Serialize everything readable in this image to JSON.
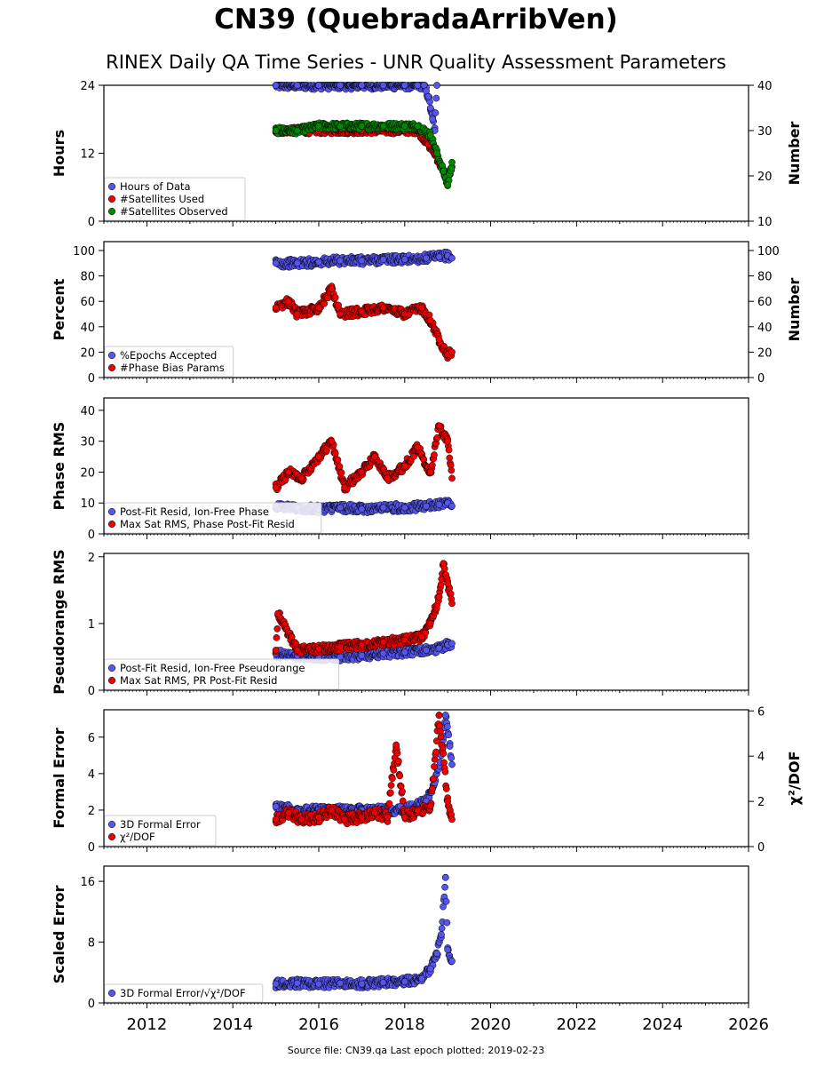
{
  "header": {
    "title": "CN39 (QuebradaArribVen)",
    "subtitle": "RINEX Daily QA Time Series - UNR Quality Assessment Parameters"
  },
  "footer": {
    "text": "Source file: CN39.qa Last epoch plotted: 2019-02-23"
  },
  "colors": {
    "blue": "#5555ee",
    "red": "#ee0000",
    "green": "#008800",
    "edge": "#000000"
  },
  "chart_data": [
    {
      "type": "scatter",
      "ylabel": "Hours",
      "ylim": [
        0,
        24
      ],
      "yticks": [
        0,
        12,
        24
      ],
      "ylabel_right": "Number",
      "ylim_right": [
        10,
        40
      ],
      "yticks_right": [
        10,
        20,
        30,
        40
      ],
      "xlim": [
        2011,
        2026
      ],
      "legend_position": "lower left",
      "series": [
        {
          "name": "Hours of Data",
          "color": "blue",
          "axis": "left",
          "x": [
            2015.0,
            2015.5,
            2016.0,
            2016.5,
            2017.0,
            2017.5,
            2018.0,
            2018.3,
            2018.45,
            2018.5,
            2018.55,
            2018.6,
            2018.65,
            2018.7,
            2018.75
          ],
          "y": [
            24,
            24,
            24,
            24,
            24,
            24,
            24,
            24,
            24,
            23,
            22,
            20,
            18,
            16,
            24
          ]
        },
        {
          "name": "#Satellites Used",
          "color": "red",
          "axis": "right",
          "x": [
            2015.0,
            2016.0,
            2017.0,
            2018.0,
            2018.3,
            2018.55,
            2018.7,
            2018.85,
            2019.0,
            2019.1
          ],
          "y": [
            30,
            30,
            30,
            30,
            30,
            27,
            25,
            22,
            19,
            22
          ]
        },
        {
          "name": "#Satellites Observed",
          "color": "green",
          "axis": "right",
          "x": [
            2015.0,
            2015.5,
            2016.0,
            2016.5,
            2017.0,
            2017.5,
            2018.0,
            2018.3,
            2018.6,
            2018.75,
            2018.9,
            2019.0,
            2019.1
          ],
          "y": [
            30,
            30,
            31,
            31,
            31,
            31,
            31,
            31,
            29,
            25,
            21,
            18,
            23
          ]
        }
      ]
    },
    {
      "type": "scatter",
      "ylabel": "Percent",
      "ylim": [
        0,
        107
      ],
      "yticks": [
        0,
        20,
        40,
        60,
        80,
        100
      ],
      "ylabel_right": "Number",
      "ylim_right": [
        0,
        107
      ],
      "yticks_right": [
        0,
        20,
        40,
        60,
        80,
        100
      ],
      "xlim": [
        2011,
        2026
      ],
      "legend_position": "lower left",
      "series": [
        {
          "name": "%Epochs Accepted",
          "color": "blue",
          "axis": "left",
          "x": [
            2015.0,
            2015.5,
            2016.0,
            2016.5,
            2017.0,
            2017.5,
            2018.0,
            2018.5,
            2018.8,
            2019.0,
            2019.1
          ],
          "y": [
            90,
            90,
            91,
            92,
            92,
            93,
            93,
            94,
            95,
            96,
            94
          ]
        },
        {
          "name": "#Phase Bias Params",
          "color": "red",
          "axis": "right",
          "x": [
            2015.0,
            2015.3,
            2015.5,
            2016.0,
            2016.3,
            2016.5,
            2017.0,
            2017.5,
            2018.0,
            2018.4,
            2018.6,
            2018.8,
            2019.0,
            2019.1
          ],
          "y": [
            55,
            60,
            50,
            55,
            70,
            50,
            52,
            55,
            50,
            55,
            45,
            30,
            18,
            20
          ]
        }
      ]
    },
    {
      "type": "scatter",
      "ylabel": "Phase RMS",
      "ylim": [
        0,
        44
      ],
      "yticks": [
        0,
        10,
        20,
        30,
        40
      ],
      "xlim": [
        2011,
        2026
      ],
      "legend_position": "lower left",
      "series": [
        {
          "name": "Post-Fit Resid, Ion-Free Phase",
          "color": "blue",
          "axis": "left",
          "x": [
            2015.0,
            2015.5,
            2016.0,
            2016.5,
            2017.0,
            2017.5,
            2018.0,
            2018.5,
            2018.8,
            2019.0,
            2019.1
          ],
          "y": [
            9,
            8.5,
            8,
            8.5,
            8,
            8.5,
            8.5,
            9,
            9.5,
            10,
            9
          ]
        },
        {
          "name": "Max Sat RMS, Phase Post-Fit Resid",
          "color": "red",
          "axis": "left",
          "x": [
            2015.0,
            2015.3,
            2015.6,
            2016.0,
            2016.3,
            2016.6,
            2017.0,
            2017.3,
            2017.6,
            2018.0,
            2018.3,
            2018.6,
            2018.8,
            2019.0,
            2019.1
          ],
          "y": [
            15,
            20,
            18,
            25,
            30,
            15,
            20,
            25,
            18,
            22,
            28,
            20,
            35,
            30,
            18
          ]
        }
      ]
    },
    {
      "type": "scatter",
      "ylabel": "Pseudorange RMS",
      "ylim": [
        0,
        2.05
      ],
      "yticks": [
        0,
        1,
        2
      ],
      "xlim": [
        2011,
        2026
      ],
      "legend_position": "lower left",
      "series": [
        {
          "name": "Post-Fit Resid, Ion-Free Pseudorange",
          "color": "blue",
          "axis": "left",
          "x": [
            2015.0,
            2015.5,
            2016.0,
            2016.5,
            2017.0,
            2017.5,
            2018.0,
            2018.5,
            2018.8,
            2019.0,
            2019.1
          ],
          "y": [
            0.55,
            0.52,
            0.5,
            0.5,
            0.52,
            0.55,
            0.57,
            0.6,
            0.63,
            0.68,
            0.7
          ]
        },
        {
          "name": "Max Sat RMS, PR Post-Fit Resid",
          "color": "red",
          "axis": "left",
          "x": [
            2015.0,
            2015.05,
            2015.5,
            2016.0,
            2016.5,
            2017.0,
            2017.5,
            2018.0,
            2018.4,
            2018.6,
            2018.8,
            2018.9,
            2019.0,
            2019.1
          ],
          "y": [
            0.6,
            1.15,
            0.6,
            0.62,
            0.65,
            0.68,
            0.72,
            0.75,
            0.8,
            1.0,
            1.4,
            1.9,
            1.6,
            1.3
          ]
        }
      ]
    },
    {
      "type": "scatter",
      "ylabel": "Formal Error",
      "ylim": [
        0,
        7.5
      ],
      "yticks": [
        0,
        2,
        4,
        6
      ],
      "ylabel_right": "χ²/DOF",
      "ylim_right": [
        0,
        6.05
      ],
      "yticks_right": [
        0,
        2,
        4,
        6
      ],
      "xlim": [
        2011,
        2026
      ],
      "legend_position": "lower left",
      "series": [
        {
          "name": "3D Formal Error",
          "color": "blue",
          "axis": "left",
          "x": [
            2015.0,
            2015.5,
            2016.0,
            2016.5,
            2017.0,
            2017.5,
            2018.0,
            2018.5,
            2018.7,
            2018.85,
            2018.95,
            2019.05,
            2019.1
          ],
          "y": [
            2.2,
            2.0,
            2.0,
            2.0,
            2.0,
            2.0,
            2.0,
            2.5,
            3.5,
            5.0,
            7.2,
            5.5,
            4.5
          ]
        },
        {
          "name": "χ²/DOF",
          "color": "red",
          "axis": "right",
          "x": [
            2015.0,
            2015.3,
            2015.6,
            2016.0,
            2016.3,
            2016.6,
            2017.0,
            2017.3,
            2017.6,
            2017.8,
            2018.0,
            2018.3,
            2018.6,
            2018.8,
            2019.0,
            2019.1
          ],
          "y": [
            1.2,
            1.5,
            1.2,
            1.3,
            1.6,
            1.2,
            1.3,
            1.5,
            1.3,
            4.5,
            1.3,
            1.6,
            1.8,
            5.8,
            2.0,
            1.2
          ]
        }
      ]
    },
    {
      "type": "scatter",
      "ylabel": "Scaled Error",
      "ylim": [
        0,
        18
      ],
      "yticks": [
        0,
        8,
        16
      ],
      "xlim": [
        2011,
        2026
      ],
      "xticks": [
        2012,
        2014,
        2016,
        2018,
        2020,
        2022,
        2024,
        2026
      ],
      "legend_position": "lower left",
      "series": [
        {
          "name": "3D Formal Error/√χ²/DOF",
          "color": "blue",
          "axis": "left",
          "x": [
            2015.0,
            2015.5,
            2016.0,
            2016.5,
            2017.0,
            2017.5,
            2018.0,
            2018.4,
            2018.6,
            2018.75,
            2018.85,
            2018.95,
            2019.0,
            2019.1
          ],
          "y": [
            2.5,
            2.6,
            2.5,
            2.6,
            2.5,
            2.7,
            2.8,
            3.2,
            4.5,
            6.5,
            9.0,
            16.5,
            7.0,
            5.5
          ]
        }
      ]
    }
  ]
}
